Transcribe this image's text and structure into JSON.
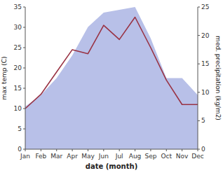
{
  "chart_data": {
    "type": "line",
    "categories": [
      "Jan",
      "Feb",
      "Mar",
      "Apr",
      "May",
      "Jun",
      "Jul",
      "Aug",
      "Sep",
      "Oct",
      "Nov",
      "Dec"
    ],
    "xlabel": "date (month)",
    "ylabel": "max temp (C)",
    "y2label": "med. precipitation (kg/m2)",
    "series": [
      {
        "type": "area",
        "axis": "y2",
        "color": "#b8c0e8",
        "values": [
          7.5,
          9.5,
          12.5,
          16.5,
          21.5,
          24,
          24.5,
          25,
          19.5,
          12.5,
          12.5,
          9.5
        ]
      },
      {
        "type": "line",
        "color": "#993344",
        "values": [
          10,
          13.5,
          19,
          24.5,
          23.5,
          30.5,
          27,
          32.5,
          25,
          17,
          11,
          11
        ]
      }
    ],
    "ylim": [
      0,
      35
    ],
    "yticks": [
      0,
      5,
      10,
      15,
      20,
      25,
      30,
      35
    ],
    "y2lim": [
      0,
      25
    ],
    "y2ticks": [
      0,
      5,
      10,
      15,
      20,
      25
    ],
    "grid": false
  }
}
